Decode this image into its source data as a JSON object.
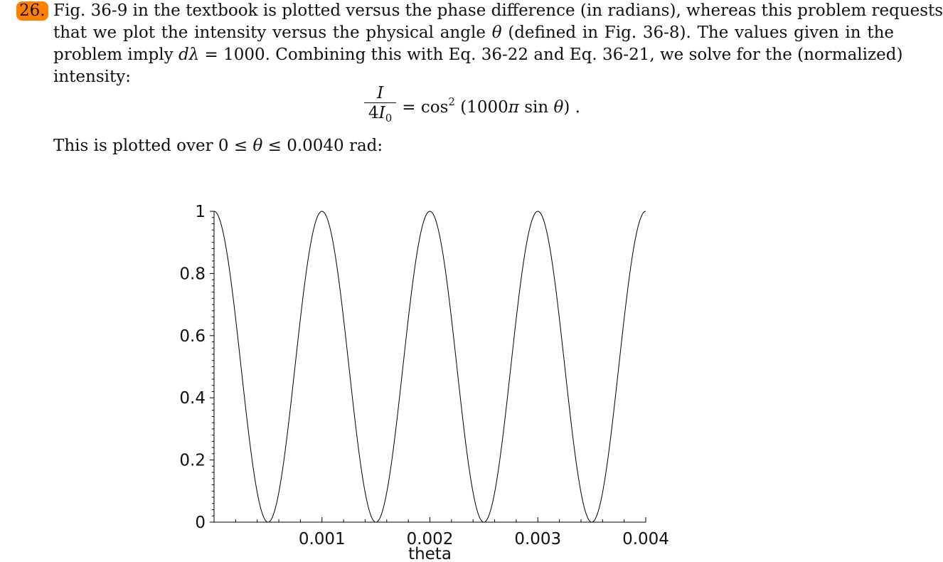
{
  "problem_number": "26.",
  "paragraph": {
    "line1": "Fig. 36-9 in the textbook is plotted versus the phase difference (in radians), whereas this problem requests",
    "line2_a": "that we plot the intensity versus the physical angle ",
    "line2_theta": "θ",
    "line2_b": " (defined in Fig. 36-8). The values given in the",
    "line3_a": "problem imply ",
    "line3_dl": "dλ",
    "line3_b": " = 1000. Combining this with Eq. 36-22 and Eq. 36-21, we solve for the (normalized)",
    "line4": "intensity:"
  },
  "equation": {
    "numerator": "I",
    "denominator_a": "4",
    "denominator_i": "I",
    "denominator_sub": "0",
    "rhs_a": "= cos",
    "rhs_sup": "2",
    "rhs_b": " (1000",
    "rhs_pi": "π",
    "rhs_c": " sin ",
    "rhs_theta": "θ",
    "rhs_d": ")  ."
  },
  "after": {
    "a": "This is plotted over 0 ≤ ",
    "theta": "θ",
    "b": " ≤ 0.0040 rad:"
  },
  "chart_data": {
    "type": "line",
    "function": "cos^2(1000*pi*sin(theta))",
    "xlabel": "theta",
    "ylabel": "",
    "xlim": [
      0,
      0.004
    ],
    "ylim": [
      0,
      1
    ],
    "x_ticks": [
      0.001,
      0.002,
      0.003,
      0.004
    ],
    "x_tick_labels": [
      "0.001",
      "0.002",
      "0.003",
      "0.004"
    ],
    "y_ticks": [
      0,
      0.2,
      0.4,
      0.6,
      0.8,
      1
    ],
    "y_tick_labels": [
      "0",
      "0.2",
      "0.4",
      "0.6",
      "0.8",
      "1"
    ],
    "grid": false,
    "series": [
      {
        "x": [
          0,
          0.00025,
          0.0005,
          0.00075,
          0.001,
          0.00125,
          0.0015,
          0.00175,
          0.002,
          0.00225,
          0.0025,
          0.00275,
          0.003,
          0.00325,
          0.0035,
          0.00375,
          0.004
        ],
        "y": [
          1,
          0.5,
          0,
          0.5,
          1,
          0.5,
          0,
          0.5,
          1,
          0.5,
          0,
          0.5,
          1,
          0.5,
          0,
          0.5,
          1
        ]
      }
    ],
    "color": "#000000"
  }
}
